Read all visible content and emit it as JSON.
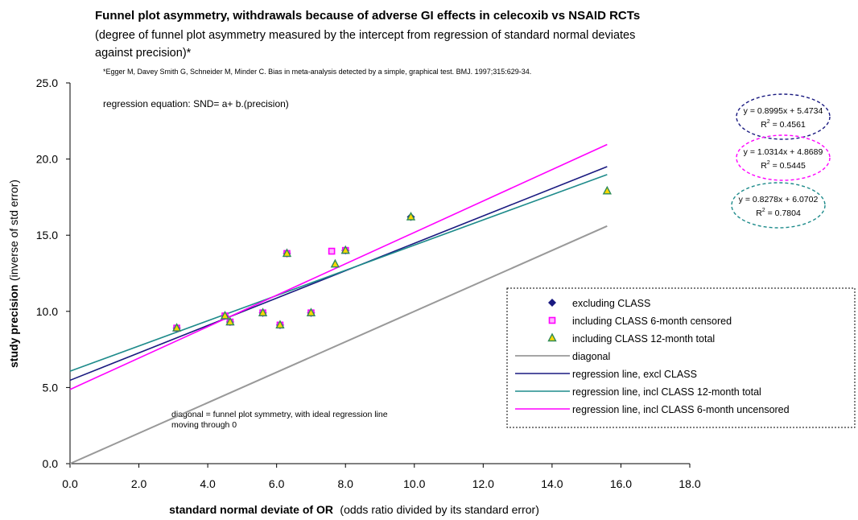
{
  "chart_data": {
    "type": "scatter",
    "title": "Funnel plot asymmetry, withdrawals because of adverse GI effects in celecoxib vs NSAID RCTs",
    "subtitle_line1": "(degree of funnel plot asymmetry measured by the intercept from regression of standard normal deviates",
    "subtitle_line2": "against precision)*",
    "reference": "*Egger M, Davey Smith G, Schneider M, Minder C. Bias in meta-analysis detected by a simple, graphical test. BMJ. 1997;315:629-34.",
    "regression_note": "regression equation: SND= a+ b.(precision)",
    "diagonal_note_line1": "diagonal = funnel plot symmetry, with ideal regression line",
    "diagonal_note_line2": "moving through 0",
    "xlabel_bold": "standard normal deviate of OR",
    "xlabel_rest": "(odds ratio divided by its standard error)",
    "ylabel_bold": "study precision",
    "ylabel_rest": "(inverse of std error)",
    "xlim": [
      0,
      18
    ],
    "ylim": [
      0,
      25
    ],
    "xticks": [
      "0.0",
      "2.0",
      "4.0",
      "6.0",
      "8.0",
      "10.0",
      "12.0",
      "14.0",
      "16.0",
      "18.0"
    ],
    "yticks": [
      "0.0",
      "5.0",
      "10.0",
      "15.0",
      "20.0",
      "25.0"
    ],
    "grid": false,
    "legend_position": "right",
    "series": [
      {
        "name": "excluding CLASS",
        "marker": "diamond",
        "color": "#1a1a80",
        "points": [
          [
            3.1,
            8.9
          ],
          [
            4.5,
            9.7
          ],
          [
            4.65,
            9.3
          ],
          [
            5.6,
            9.9
          ],
          [
            6.1,
            9.1
          ],
          [
            6.3,
            13.8
          ],
          [
            7.0,
            9.9
          ],
          [
            8.0,
            14.0
          ],
          [
            9.9,
            16.2
          ]
        ]
      },
      {
        "name": "including CLASS 6-month censored",
        "marker": "square",
        "color": "#ff00ff",
        "points": [
          [
            3.1,
            8.9
          ],
          [
            4.5,
            9.7
          ],
          [
            4.65,
            9.3
          ],
          [
            5.6,
            9.9
          ],
          [
            6.1,
            9.1
          ],
          [
            6.3,
            13.8
          ],
          [
            7.0,
            9.9
          ],
          [
            7.6,
            13.95
          ],
          [
            8.0,
            14.0
          ]
        ]
      },
      {
        "name": "including CLASS 12-month total",
        "marker": "triangle",
        "color": "#2e8b57",
        "fill": "#ffd700",
        "points": [
          [
            3.1,
            8.9
          ],
          [
            4.5,
            9.7
          ],
          [
            4.65,
            9.3
          ],
          [
            5.6,
            9.9
          ],
          [
            6.1,
            9.1
          ],
          [
            6.3,
            13.8
          ],
          [
            7.0,
            9.9
          ],
          [
            7.7,
            13.1
          ],
          [
            8.0,
            14.0
          ],
          [
            9.9,
            16.2
          ],
          [
            15.6,
            17.9
          ]
        ]
      }
    ],
    "lines": [
      {
        "name": "diagonal",
        "color": "#999999",
        "width": 2,
        "x": [
          0,
          15.6
        ],
        "y": [
          0,
          15.6
        ]
      },
      {
        "name": "regression line, excl CLASS",
        "color": "#1a1a80",
        "width": 1.6,
        "slope": 0.8995,
        "intercept": 5.4734,
        "x": [
          0,
          15.6
        ]
      },
      {
        "name": "regression line, incl CLASS 12-month total",
        "color": "#1e8b8b",
        "width": 1.6,
        "slope": 0.8278,
        "intercept": 6.0702,
        "x": [
          0,
          15.6
        ]
      },
      {
        "name": "regression line, incl CLASS 6-month uncensored",
        "color": "#ff00ff",
        "width": 1.6,
        "slope": 1.0314,
        "intercept": 4.8689,
        "x": [
          0,
          15.6
        ]
      }
    ],
    "equations": [
      {
        "eq": "y = 0.8995x + 5.4734",
        "r2_label": "R",
        "r2_value": " = 0.4561",
        "color": "#1a1a80"
      },
      {
        "eq": "y = 1.0314x + 4.8689",
        "r2_label": "R",
        "r2_value": " = 0.5445",
        "color": "#ff00ff"
      },
      {
        "eq": "y = 0.8278x + 6.0702",
        "r2_label": "R",
        "r2_value": " = 0.7804",
        "color": "#1e8b8b"
      }
    ],
    "legend": [
      {
        "label": "excluding CLASS",
        "kind": "diamond",
        "color": "#1a1a80"
      },
      {
        "label": "including CLASS 6-month censored",
        "kind": "square",
        "color": "#ff00ff"
      },
      {
        "label": "including CLASS 12-month total",
        "kind": "triangle",
        "color": "#2e8b57"
      },
      {
        "label": "diagonal",
        "kind": "line",
        "color": "#999999"
      },
      {
        "label": "regression line, excl CLASS",
        "kind": "line",
        "color": "#1a1a80"
      },
      {
        "label": "regression line, incl CLASS 12-month total",
        "kind": "line",
        "color": "#1e8b8b"
      },
      {
        "label": "regression line, incl CLASS 6-month uncensored",
        "kind": "line",
        "color": "#ff00ff"
      }
    ]
  }
}
